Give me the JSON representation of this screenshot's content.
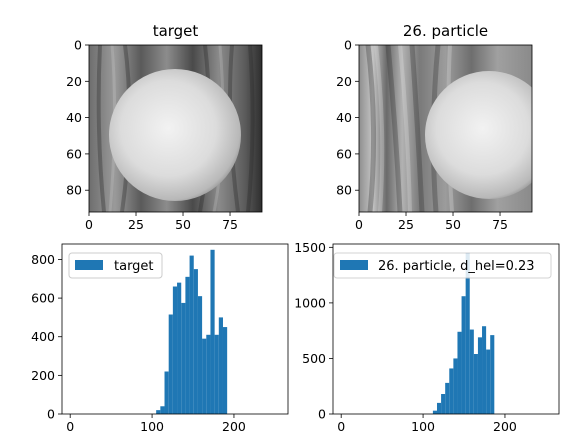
{
  "figure": {
    "panels": [
      {
        "title": "target"
      },
      {
        "title": "26. particle"
      }
    ]
  },
  "chart_data": [
    {
      "type": "heatmap",
      "title": "target",
      "colormap": "gray",
      "xlim": [
        0,
        92
      ],
      "ylim": [
        92,
        0
      ],
      "xticks": [
        0,
        25,
        50,
        75
      ],
      "yticks": [
        0,
        20,
        40,
        60,
        80
      ],
      "content": "bright circular object on dark gray striped background",
      "circle": {
        "cx": 47,
        "cy": 48,
        "r": 36
      }
    },
    {
      "type": "heatmap",
      "title": "26. particle",
      "colormap": "gray",
      "xlim": [
        0,
        92
      ],
      "ylim": [
        92,
        0
      ],
      "xticks": [
        0,
        25,
        50,
        75
      ],
      "yticks": [
        0,
        20,
        40,
        60,
        80
      ],
      "content": "bright circular object offset to the right on gray striped background",
      "circle": {
        "cx": 71,
        "cy": 48,
        "r": 35
      }
    },
    {
      "type": "bar",
      "xlim": [
        -10,
        266
      ],
      "ylim": [
        0,
        880
      ],
      "xticks": [
        0,
        100,
        200
      ],
      "yticks": [
        0,
        200,
        400,
        600,
        800
      ],
      "legend": "top-left",
      "color": "#1f77b4",
      "series": [
        {
          "name": "target",
          "bin_width": 5.1,
          "bins": [
            105,
            110.1,
            115.2,
            120.3,
            125.4,
            130.5,
            135.6,
            140.7,
            145.8,
            150.9,
            156,
            161.1,
            166.2,
            171.3,
            176.4,
            181.5,
            186.6
          ],
          "values": [
            20,
            40,
            220,
            515,
            660,
            680,
            575,
            710,
            820,
            750,
            610,
            390,
            410,
            850,
            410,
            500,
            450
          ]
        }
      ]
    },
    {
      "type": "bar",
      "xlim": [
        -10,
        266
      ],
      "ylim": [
        0,
        1530
      ],
      "xticks": [
        0,
        100,
        200
      ],
      "yticks": [
        0,
        500,
        1000,
        1500
      ],
      "legend": "top-left",
      "color": "#1f77b4",
      "series": [
        {
          "name": "26. particle, d_hel=0.23",
          "bin_width": 5,
          "bins": [
            112,
            117,
            122,
            127,
            132,
            137,
            142,
            147,
            152,
            157,
            162,
            167,
            172,
            177,
            182
          ],
          "values": [
            30,
            100,
            180,
            280,
            410,
            500,
            740,
            1060,
            1450,
            760,
            540,
            690,
            790,
            580,
            710
          ]
        }
      ]
    }
  ]
}
